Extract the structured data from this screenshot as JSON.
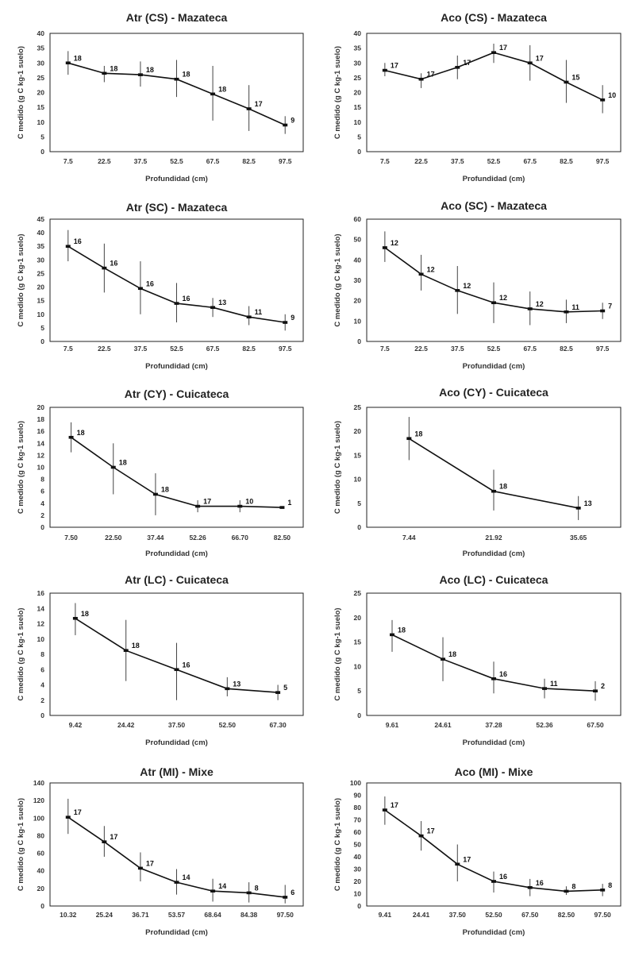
{
  "chart_data": [
    {
      "type": "line",
      "title": "Atr (CS) - Mazateca",
      "xlabel": "Profundidad (cm)",
      "ylabel": "C medido (g C kg-1 suelo)",
      "ylim": [
        0,
        40
      ],
      "yticks": [
        "0",
        "5",
        "10",
        "15",
        "20",
        "25",
        "30",
        "35",
        "40"
      ],
      "x": [
        "7.5",
        "22.5",
        "37.5",
        "52.5",
        "67.5",
        "82.5",
        "97.5"
      ],
      "values": [
        30,
        26.5,
        26,
        24.5,
        19.5,
        14.5,
        9
      ],
      "err_low": [
        26,
        23.5,
        22,
        18.5,
        10.5,
        7,
        6
      ],
      "err_high": [
        34,
        29,
        30.5,
        31,
        29,
        22.5,
        12
      ],
      "labels": [
        "18",
        "18",
        "18",
        "18",
        "18",
        "17",
        "9"
      ]
    },
    {
      "type": "line",
      "title": "Aco (CS) - Mazateca",
      "xlabel": "Profundidad (cm)",
      "ylabel": "C medido (g C kg-1 suelo)",
      "ylim": [
        0,
        40
      ],
      "yticks": [
        "0",
        "5",
        "10",
        "15",
        "20",
        "25",
        "30",
        "35",
        "40"
      ],
      "x": [
        "7.5",
        "22.5",
        "37.5",
        "52.5",
        "67.5",
        "82.5",
        "97.5"
      ],
      "values": [
        27.5,
        24.5,
        28.5,
        33.5,
        30,
        23.5,
        17.5
      ],
      "err_low": [
        25.5,
        21.5,
        24.5,
        30,
        24,
        16.5,
        13
      ],
      "err_high": [
        30,
        26.5,
        32.5,
        36.5,
        36,
        31,
        22.5
      ],
      "labels": [
        "17",
        "17",
        "17",
        "17",
        "17",
        "15",
        "10"
      ]
    },
    {
      "type": "line",
      "title": "Atr (SC) - Mazateca",
      "xlabel": "Profundidad (cm)",
      "ylabel": "C medido (g C kg-1 suelo)",
      "ylim": [
        0,
        45
      ],
      "yticks": [
        "0",
        "5",
        "10",
        "15",
        "20",
        "25",
        "30",
        "35",
        "40",
        "45"
      ],
      "x": [
        "7.5",
        "22.5",
        "37.5",
        "52.5",
        "67.5",
        "82.5",
        "97.5"
      ],
      "values": [
        35,
        27,
        19.5,
        14,
        12.5,
        9,
        7
      ],
      "err_low": [
        29.5,
        18,
        10,
        7,
        9,
        6,
        4
      ],
      "err_high": [
        41,
        36,
        29.5,
        21.5,
        16,
        13,
        10
      ],
      "labels": [
        "16",
        "16",
        "16",
        "16",
        "13",
        "11",
        "9"
      ]
    },
    {
      "type": "line",
      "title": "Aco (SC) - Mazateca",
      "xlabel": "Profundidad (cm)",
      "ylabel": "C medido (g C kg-1 suelo)",
      "ylim": [
        0,
        60
      ],
      "yticks": [
        "0",
        "10",
        "20",
        "30",
        "40",
        "50",
        "60"
      ],
      "x": [
        "7.5",
        "22.5",
        "37.5",
        "52.5",
        "67.5",
        "82.5",
        "97.5"
      ],
      "values": [
        46,
        33,
        25,
        19,
        16,
        14.5,
        15
      ],
      "err_low": [
        39,
        25,
        13.5,
        9,
        8,
        9,
        11
      ],
      "err_high": [
        54,
        42.5,
        37,
        29,
        24.5,
        20.5,
        19
      ],
      "labels": [
        "12",
        "12",
        "12",
        "12",
        "12",
        "11",
        "7"
      ]
    },
    {
      "type": "line",
      "title": "Atr (CY) - Cuicateca",
      "xlabel": "Profundidad (cm)",
      "ylabel": "C medido (g C kg-1 suelo)",
      "ylim": [
        0,
        20
      ],
      "yticks": [
        "0",
        "2",
        "4",
        "6",
        "8",
        "10",
        "12",
        "14",
        "16",
        "18",
        "20"
      ],
      "x": [
        "7.50",
        "22.50",
        "37.44",
        "52.26",
        "66.70",
        "82.50"
      ],
      "values": [
        15,
        10,
        5.5,
        3.5,
        3.5,
        3.3
      ],
      "err_low": [
        12.5,
        5.5,
        2,
        2.5,
        2.5,
        3.3
      ],
      "err_high": [
        17.5,
        14,
        9,
        4.5,
        4.5,
        3.3
      ],
      "labels": [
        "18",
        "18",
        "18",
        "17",
        "10",
        "1"
      ]
    },
    {
      "type": "line",
      "title": "Aco (CY) - Cuicateca",
      "xlabel": "Profundidad (cm)",
      "ylabel": "C medido (g C kg-1 suelo)",
      "ylim": [
        0,
        25
      ],
      "yticks": [
        "0",
        "5",
        "10",
        "15",
        "20",
        "25"
      ],
      "x": [
        "7.44",
        "21.92",
        "35.65"
      ],
      "values": [
        18.5,
        7.5,
        4
      ],
      "err_low": [
        14,
        3.5,
        1.5
      ],
      "err_high": [
        23,
        12,
        6.5
      ],
      "labels": [
        "18",
        "18",
        "13"
      ]
    },
    {
      "type": "line",
      "title": "Atr (LC) - Cuicateca",
      "xlabel": "Profundidad (cm)",
      "ylabel": "C medido (g C kg-1 suelo)",
      "ylim": [
        0,
        16
      ],
      "yticks": [
        "0",
        "2",
        "4",
        "6",
        "8",
        "10",
        "12",
        "14",
        "16"
      ],
      "x": [
        "9.42",
        "24.42",
        "37.50",
        "52.50",
        "67.30"
      ],
      "values": [
        12.7,
        8.5,
        6,
        3.5,
        3
      ],
      "err_low": [
        10.5,
        4.5,
        2,
        2.5,
        2
      ],
      "err_high": [
        14.7,
        12.5,
        9.5,
        5,
        4
      ],
      "labels": [
        "18",
        "18",
        "16",
        "13",
        "5"
      ]
    },
    {
      "type": "line",
      "title": "Aco (LC) - Cuicateca",
      "xlabel": "Profundidad (cm)",
      "ylabel": "C medido (g C kg-1 suelo)",
      "ylim": [
        0,
        25
      ],
      "yticks": [
        "0",
        "5",
        "10",
        "15",
        "20",
        "25"
      ],
      "x": [
        "9.61",
        "24.61",
        "37.28",
        "52.36",
        "67.50"
      ],
      "values": [
        16.5,
        11.5,
        7.5,
        5.5,
        5
      ],
      "err_low": [
        13,
        7,
        4.5,
        3.5,
        3
      ],
      "err_high": [
        19.5,
        16,
        11,
        7.5,
        7
      ],
      "labels": [
        "18",
        "18",
        "16",
        "11",
        "2"
      ]
    },
    {
      "type": "line",
      "title": "Atr (MI) - Mixe",
      "xlabel": "Profundidad (cm)",
      "ylabel": "C medido (g C kg-1 suelo)",
      "ylim": [
        0,
        140
      ],
      "yticks": [
        "0",
        "20",
        "40",
        "60",
        "80",
        "100",
        "120",
        "140"
      ],
      "x": [
        "10.32",
        "25.24",
        "36.71",
        "53.57",
        "68.64",
        "84.38",
        "97.50"
      ],
      "values": [
        101,
        73,
        43,
        27,
        17,
        15,
        10
      ],
      "err_low": [
        82,
        56,
        28,
        13,
        5,
        4,
        3
      ],
      "err_high": [
        122,
        91,
        61,
        42,
        31,
        27,
        24
      ],
      "labels": [
        "17",
        "17",
        "17",
        "14",
        "14",
        "8",
        "6"
      ]
    },
    {
      "type": "line",
      "title": "Aco (MI) - Mixe",
      "xlabel": "Profundidad (cm)",
      "ylabel": "C medido (g C kg-1 suelo)",
      "ylim": [
        0,
        100
      ],
      "yticks": [
        "0",
        "10",
        "20",
        "30",
        "40",
        "50",
        "60",
        "70",
        "80",
        "90",
        "100"
      ],
      "x": [
        "9.41",
        "24.41",
        "37.50",
        "52.50",
        "67.50",
        "82.50",
        "97.50"
      ],
      "values": [
        78,
        57,
        34,
        20,
        15,
        12,
        13
      ],
      "err_low": [
        66,
        45,
        20,
        11,
        8,
        9,
        8
      ],
      "err_high": [
        89,
        69,
        50,
        28,
        22,
        16,
        18
      ],
      "labels": [
        "17",
        "17",
        "17",
        "16",
        "16",
        "8",
        "8"
      ]
    }
  ]
}
